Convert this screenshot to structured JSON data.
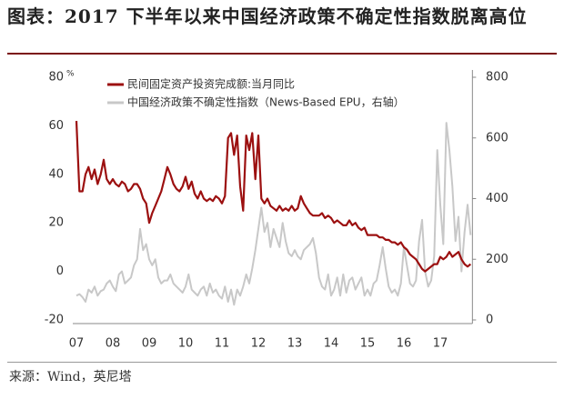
{
  "chart_data": {
    "type": "line",
    "title": "图表：2017 下半年以来中国经济政策不确定性指数脱离高位",
    "source": "来源：Wind，英尼塔",
    "y_unit": "%",
    "categories": [
      "07",
      null,
      null,
      null,
      null,
      null,
      null,
      null,
      null,
      null,
      null,
      null,
      "08",
      null,
      null,
      null,
      null,
      null,
      null,
      null,
      null,
      null,
      null,
      null,
      "09",
      null,
      null,
      null,
      null,
      null,
      null,
      null,
      null,
      null,
      null,
      null,
      "10",
      null,
      null,
      null,
      null,
      null,
      null,
      null,
      null,
      null,
      null,
      null,
      "11",
      null,
      null,
      null,
      null,
      null,
      null,
      null,
      null,
      null,
      null,
      null,
      "12",
      null,
      null,
      null,
      null,
      null,
      null,
      null,
      null,
      null,
      null,
      null,
      "13",
      null,
      null,
      null,
      null,
      null,
      null,
      null,
      null,
      null,
      null,
      null,
      "14",
      null,
      null,
      null,
      null,
      null,
      null,
      null,
      null,
      null,
      null,
      null,
      "15",
      null,
      null,
      null,
      null,
      null,
      null,
      null,
      null,
      null,
      null,
      null,
      "16",
      null,
      null,
      null,
      null,
      null,
      null,
      null,
      null,
      null,
      null,
      null,
      "17",
      null,
      null,
      null,
      null,
      null,
      null,
      null,
      null,
      null,
      null
    ],
    "series": [
      {
        "name": "民间固定资产投资完成额:当月同比",
        "color": "#9c1010",
        "axis": "y",
        "values": [
          62,
          33,
          33,
          40,
          43,
          38,
          42,
          36,
          40,
          46,
          38,
          36,
          38,
          36,
          35,
          37,
          36,
          33,
          34,
          36,
          36,
          34,
          30,
          28,
          20,
          24,
          27,
          30,
          33,
          38,
          43,
          40,
          36,
          34,
          33,
          35,
          39,
          34,
          37,
          32,
          30,
          33,
          30,
          29,
          30,
          29,
          31,
          30,
          28,
          31,
          55,
          57,
          48,
          56,
          35,
          25,
          56,
          50,
          57,
          38,
          56,
          30,
          28,
          30,
          27,
          26,
          25,
          27,
          25,
          26,
          25,
          27,
          25,
          26,
          31,
          28,
          26,
          24,
          23,
          23,
          23,
          24,
          22,
          23,
          22,
          20,
          21,
          20,
          19,
          19,
          21,
          19,
          20,
          18,
          17,
          18,
          15,
          15,
          15,
          15,
          14,
          14,
          13,
          13,
          12,
          12,
          11,
          12,
          10,
          9,
          7,
          6,
          5,
          3,
          1,
          0,
          1,
          2,
          3,
          3,
          6,
          5,
          6,
          8,
          6,
          7,
          8,
          5,
          3,
          2,
          3
        ]
      },
      {
        "name": "中国经济政策不确定性指数（News-Based EPU，右轴）",
        "color": "#c8c8c8",
        "axis": "y2",
        "values": [
          80,
          85,
          75,
          60,
          100,
          90,
          110,
          80,
          95,
          100,
          120,
          130,
          110,
          95,
          150,
          160,
          120,
          130,
          140,
          180,
          200,
          300,
          230,
          250,
          200,
          180,
          200,
          140,
          120,
          130,
          130,
          150,
          120,
          110,
          100,
          90,
          110,
          150,
          100,
          90,
          80,
          100,
          110,
          80,
          120,
          90,
          100,
          80,
          70,
          110,
          60,
          100,
          50,
          100,
          80,
          110,
          150,
          120,
          170,
          230,
          300,
          370,
          290,
          320,
          240,
          300,
          270,
          240,
          320,
          260,
          220,
          210,
          230,
          210,
          200,
          230,
          240,
          250,
          270,
          220,
          140,
          110,
          100,
          150,
          80,
          100,
          140,
          80,
          150,
          90,
          130,
          140,
          100,
          120,
          140,
          80,
          100,
          80,
          120,
          130,
          180,
          240,
          170,
          110,
          90,
          100,
          80,
          120,
          240,
          180,
          120,
          110,
          130,
          260,
          330,
          160,
          110,
          130,
          210,
          560,
          380,
          250,
          650,
          560,
          440,
          260,
          340,
          160,
          290,
          380,
          280
        ]
      }
    ],
    "ylim": [
      -20,
      80
    ],
    "yticks": [
      -20,
      0,
      20,
      40,
      60,
      80
    ],
    "y2lim": [
      0,
      800
    ],
    "y2ticks": [
      0,
      200,
      400,
      600,
      800
    ],
    "grid": false
  }
}
